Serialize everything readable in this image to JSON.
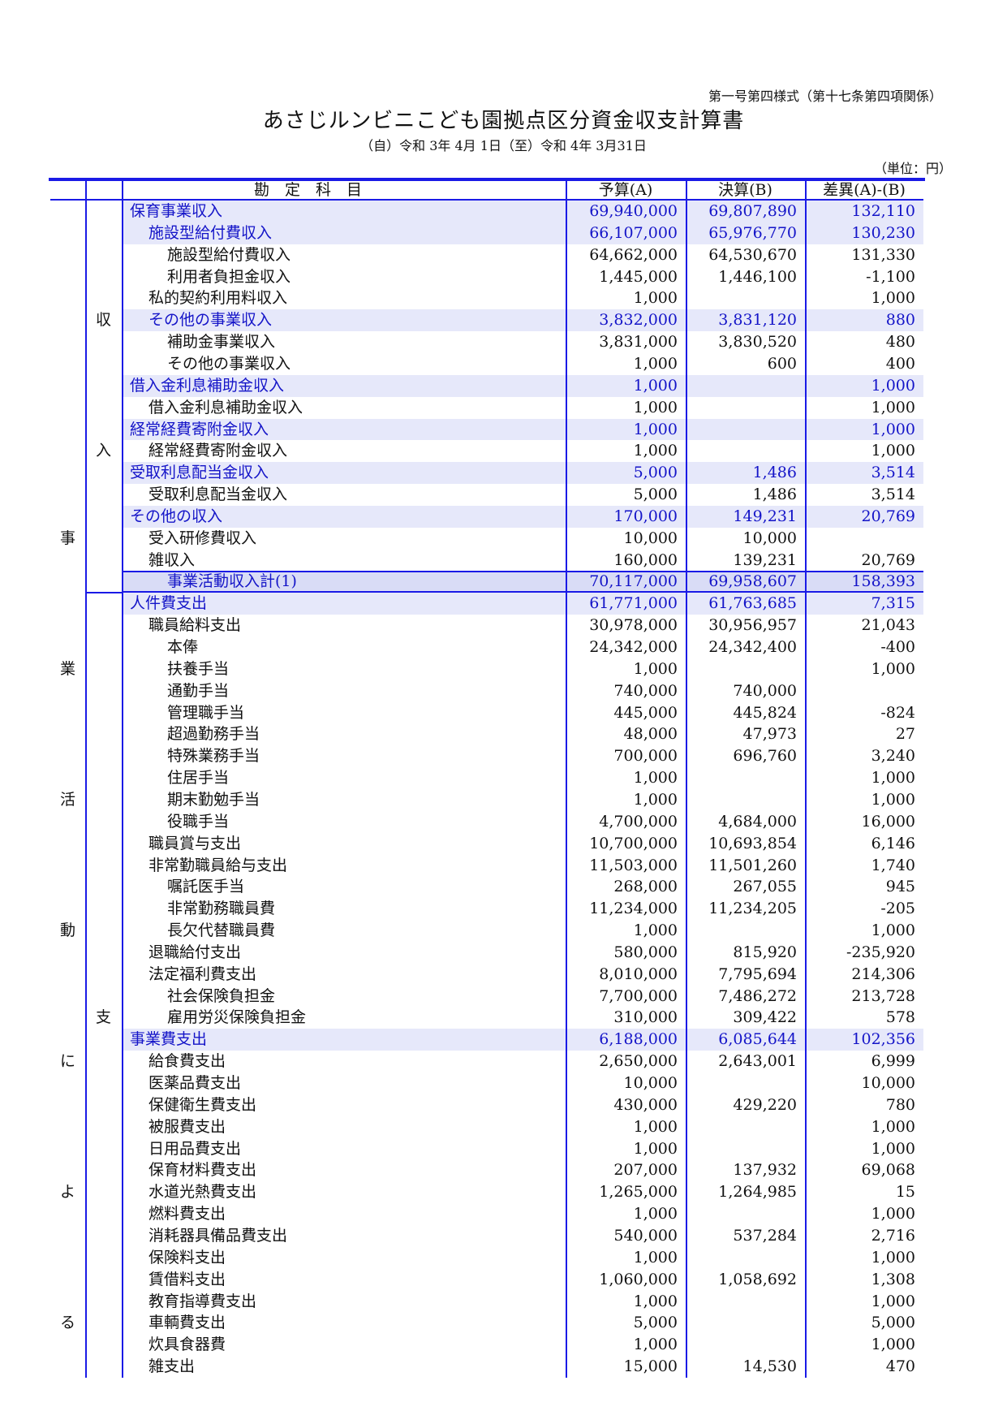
{
  "form_label": "第一号第四様式（第十七条第四項関係）",
  "title": "あさじルンビニこども園拠点区分資金収支計算書",
  "period": "（自）令和 3年 4月 1日（至）令和 4年 3月31日",
  "unit": "（単位：円）",
  "colors": {
    "border": "#1a1ae6",
    "highlight_bg": "#e6e8fa",
    "total_bg": "#d9dcf6",
    "highlight_text": "#1414c8"
  },
  "headers": {
    "account": "勘　定　科　目",
    "budget": "予算(A)",
    "actual": "決算(B)",
    "diff": "差異(A)-(B)"
  },
  "side_labels": {
    "section": [
      "事",
      "業",
      "活",
      "動",
      "に",
      "よ",
      "る"
    ],
    "income": [
      "収",
      "入"
    ],
    "expense": [
      "支"
    ]
  },
  "rows": [
    {
      "name": "保育事業収入",
      "level": 1,
      "budget": "69,940,000",
      "actual": "69,807,890",
      "diff": "132,110",
      "style": "h"
    },
    {
      "name": "施設型給付費収入",
      "level": 2,
      "budget": "66,107,000",
      "actual": "65,976,770",
      "diff": "130,230",
      "style": "h"
    },
    {
      "name": "施設型給付費収入",
      "level": 3,
      "budget": "64,662,000",
      "actual": "64,530,670",
      "diff": "131,330"
    },
    {
      "name": "利用者負担金収入",
      "level": 3,
      "budget": "1,445,000",
      "actual": "1,446,100",
      "diff": "-1,100"
    },
    {
      "name": "私的契約利用料収入",
      "level": 2,
      "budget": "1,000",
      "actual": "",
      "diff": "1,000"
    },
    {
      "name": "その他の事業収入",
      "level": 2,
      "budget": "3,832,000",
      "actual": "3,831,120",
      "diff": "880",
      "style": "h"
    },
    {
      "name": "補助金事業収入",
      "level": 3,
      "budget": "3,831,000",
      "actual": "3,830,520",
      "diff": "480"
    },
    {
      "name": "その他の事業収入",
      "level": 3,
      "budget": "1,000",
      "actual": "600",
      "diff": "400"
    },
    {
      "name": "借入金利息補助金収入",
      "level": 1,
      "budget": "1,000",
      "actual": "",
      "diff": "1,000",
      "style": "h"
    },
    {
      "name": "借入金利息補助金収入",
      "level": 2,
      "budget": "1,000",
      "actual": "",
      "diff": "1,000"
    },
    {
      "name": "経常経費寄附金収入",
      "level": 1,
      "budget": "1,000",
      "actual": "",
      "diff": "1,000",
      "style": "h"
    },
    {
      "name": "経常経費寄附金収入",
      "level": 2,
      "budget": "1,000",
      "actual": "",
      "diff": "1,000"
    },
    {
      "name": "受取利息配当金収入",
      "level": 1,
      "budget": "5,000",
      "actual": "1,486",
      "diff": "3,514",
      "style": "h"
    },
    {
      "name": "受取利息配当金収入",
      "level": 2,
      "budget": "5,000",
      "actual": "1,486",
      "diff": "3,514"
    },
    {
      "name": "その他の収入",
      "level": 1,
      "budget": "170,000",
      "actual": "149,231",
      "diff": "20,769",
      "style": "h"
    },
    {
      "name": "受入研修費収入",
      "level": 2,
      "budget": "10,000",
      "actual": "10,000",
      "diff": ""
    },
    {
      "name": "雑収入",
      "level": 2,
      "budget": "160,000",
      "actual": "139,231",
      "diff": "20,769"
    },
    {
      "name": "事業活動収入計(1)",
      "level": 3,
      "budget": "70,117,000",
      "actual": "69,958,607",
      "diff": "158,393",
      "style": "t"
    },
    {
      "name": "人件費支出",
      "level": 1,
      "budget": "61,771,000",
      "actual": "61,763,685",
      "diff": "7,315",
      "style": "h"
    },
    {
      "name": "職員給料支出",
      "level": 2,
      "budget": "30,978,000",
      "actual": "30,956,957",
      "diff": "21,043"
    },
    {
      "name": "本俸",
      "level": 3,
      "budget": "24,342,000",
      "actual": "24,342,400",
      "diff": "-400"
    },
    {
      "name": "扶養手当",
      "level": 3,
      "budget": "1,000",
      "actual": "",
      "diff": "1,000"
    },
    {
      "name": "通勤手当",
      "level": 3,
      "budget": "740,000",
      "actual": "740,000",
      "diff": ""
    },
    {
      "name": "管理職手当",
      "level": 3,
      "budget": "445,000",
      "actual": "445,824",
      "diff": "-824"
    },
    {
      "name": "超過勤務手当",
      "level": 3,
      "budget": "48,000",
      "actual": "47,973",
      "diff": "27"
    },
    {
      "name": "特殊業務手当",
      "level": 3,
      "budget": "700,000",
      "actual": "696,760",
      "diff": "3,240"
    },
    {
      "name": "住居手当",
      "level": 3,
      "budget": "1,000",
      "actual": "",
      "diff": "1,000"
    },
    {
      "name": "期末勤勉手当",
      "level": 3,
      "budget": "1,000",
      "actual": "",
      "diff": "1,000"
    },
    {
      "name": "役職手当",
      "level": 3,
      "budget": "4,700,000",
      "actual": "4,684,000",
      "diff": "16,000"
    },
    {
      "name": "職員賞与支出",
      "level": 2,
      "budget": "10,700,000",
      "actual": "10,693,854",
      "diff": "6,146"
    },
    {
      "name": "非常勤職員給与支出",
      "level": 2,
      "budget": "11,503,000",
      "actual": "11,501,260",
      "diff": "1,740"
    },
    {
      "name": "嘱託医手当",
      "level": 3,
      "budget": "268,000",
      "actual": "267,055",
      "diff": "945"
    },
    {
      "name": "非常勤務職員費",
      "level": 3,
      "budget": "11,234,000",
      "actual": "11,234,205",
      "diff": "-205"
    },
    {
      "name": "長欠代替職員費",
      "level": 3,
      "budget": "1,000",
      "actual": "",
      "diff": "1,000"
    },
    {
      "name": "退職給付支出",
      "level": 2,
      "budget": "580,000",
      "actual": "815,920",
      "diff": "-235,920"
    },
    {
      "name": "法定福利費支出",
      "level": 2,
      "budget": "8,010,000",
      "actual": "7,795,694",
      "diff": "214,306"
    },
    {
      "name": "社会保険負担金",
      "level": 3,
      "budget": "7,700,000",
      "actual": "7,486,272",
      "diff": "213,728"
    },
    {
      "name": "雇用労災保険負担金",
      "level": 3,
      "budget": "310,000",
      "actual": "309,422",
      "diff": "578"
    },
    {
      "name": "事業費支出",
      "level": 1,
      "budget": "6,188,000",
      "actual": "6,085,644",
      "diff": "102,356",
      "style": "h"
    },
    {
      "name": "給食費支出",
      "level": 2,
      "budget": "2,650,000",
      "actual": "2,643,001",
      "diff": "6,999"
    },
    {
      "name": "医薬品費支出",
      "level": 2,
      "budget": "10,000",
      "actual": "",
      "diff": "10,000"
    },
    {
      "name": "保健衛生費支出",
      "level": 2,
      "budget": "430,000",
      "actual": "429,220",
      "diff": "780"
    },
    {
      "name": "被服費支出",
      "level": 2,
      "budget": "1,000",
      "actual": "",
      "diff": "1,000"
    },
    {
      "name": "日用品費支出",
      "level": 2,
      "budget": "1,000",
      "actual": "",
      "diff": "1,000"
    },
    {
      "name": "保育材料費支出",
      "level": 2,
      "budget": "207,000",
      "actual": "137,932",
      "diff": "69,068"
    },
    {
      "name": "水道光熱費支出",
      "level": 2,
      "budget": "1,265,000",
      "actual": "1,264,985",
      "diff": "15"
    },
    {
      "name": "燃料費支出",
      "level": 2,
      "budget": "1,000",
      "actual": "",
      "diff": "1,000"
    },
    {
      "name": "消耗器具備品費支出",
      "level": 2,
      "budget": "540,000",
      "actual": "537,284",
      "diff": "2,716"
    },
    {
      "name": "保険料支出",
      "level": 2,
      "budget": "1,000",
      "actual": "",
      "diff": "1,000"
    },
    {
      "name": "賃借料支出",
      "level": 2,
      "budget": "1,060,000",
      "actual": "1,058,692",
      "diff": "1,308"
    },
    {
      "name": "教育指導費支出",
      "level": 2,
      "budget": "1,000",
      "actual": "",
      "diff": "1,000"
    },
    {
      "name": "車輌費支出",
      "level": 2,
      "budget": "5,000",
      "actual": "",
      "diff": "5,000"
    },
    {
      "name": "炊具食器費",
      "level": 2,
      "budget": "1,000",
      "actual": "",
      "diff": "1,000"
    },
    {
      "name": "雑支出",
      "level": 2,
      "budget": "15,000",
      "actual": "14,530",
      "diff": "470"
    }
  ]
}
